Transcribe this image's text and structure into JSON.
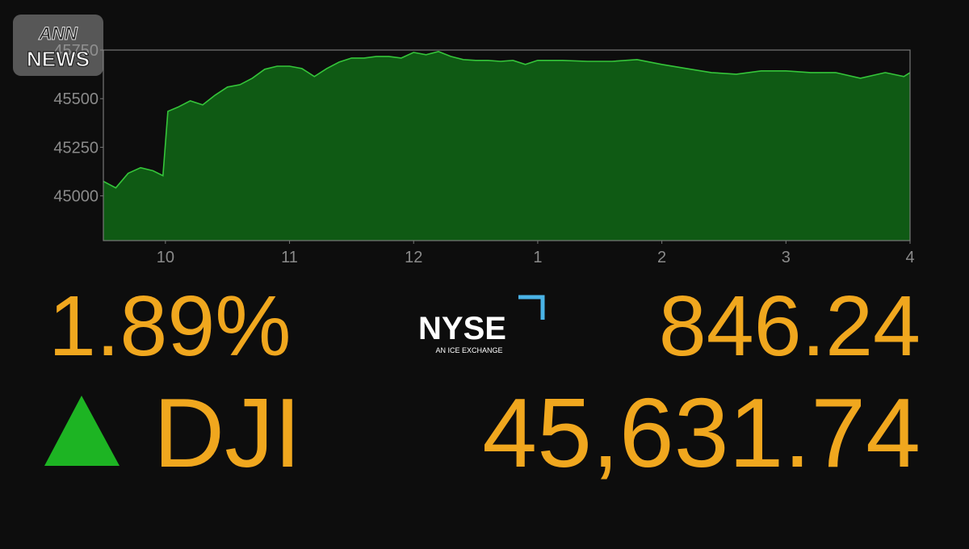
{
  "chart_data": {
    "type": "area",
    "color": "#0f5a14",
    "line_color": "#35c53a",
    "x": [
      9.5,
      9.6,
      9.7,
      9.8,
      9.9,
      9.98,
      10.02,
      10.1,
      10.2,
      10.3,
      10.4,
      10.5,
      10.6,
      10.7,
      10.8,
      10.9,
      11.0,
      11.1,
      11.2,
      11.3,
      11.4,
      11.5,
      11.6,
      11.7,
      11.8,
      11.9,
      12.0,
      12.1,
      12.2,
      12.3,
      12.4,
      12.5,
      12.6,
      12.7,
      12.8,
      12.9,
      13.0,
      13.2,
      13.4,
      13.6,
      13.8,
      14.0,
      14.2,
      14.4,
      14.6,
      14.8,
      15.0,
      15.2,
      15.4,
      15.6,
      15.8,
      15.95,
      16.0
    ],
    "values": [
      45075,
      45041,
      45116,
      45145,
      45129,
      45104,
      45435,
      45456,
      45489,
      45468,
      45518,
      45560,
      45572,
      45605,
      45651,
      45667,
      45667,
      45655,
      45614,
      45655,
      45688,
      45709,
      45709,
      45717,
      45717,
      45709,
      45738,
      45726,
      45742,
      45717,
      45701,
      45697,
      45697,
      45692,
      45697,
      45676,
      45697,
      45697,
      45692,
      45692,
      45701,
      45676,
      45655,
      45634,
      45626,
      45643,
      45643,
      45634,
      45634,
      45605,
      45634,
      45614,
      45634
    ],
    "xlim": [
      9.5,
      16
    ],
    "xticks": [
      10,
      11,
      12,
      {
        "value": 13,
        "label": "1"
      },
      {
        "value": 14,
        "label": "2"
      },
      {
        "value": 15,
        "label": "3"
      },
      {
        "value": 16,
        "label": "4"
      }
    ],
    "ylim": [
      44770,
      45750
    ],
    "yticks": [
      45000,
      45250,
      45500,
      45750
    ]
  },
  "summary": {
    "percent_change": "1.89%",
    "point_change": "846.24",
    "index": "DJI",
    "level": "45,631.74"
  },
  "logo": {
    "name": "NYSE",
    "tagline": "AN ICE EXCHANGE"
  },
  "watermark": {
    "line1": "ANN",
    "line2": "NEWS"
  }
}
